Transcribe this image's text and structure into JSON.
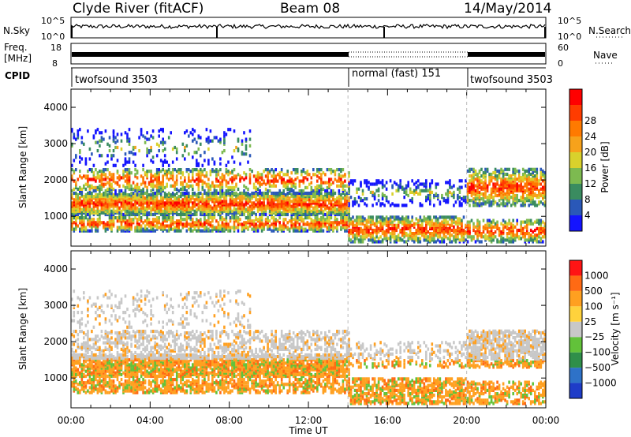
{
  "header": {
    "station": "Clyde River (fitACF)",
    "beam": "Beam 08",
    "date": "14/May/2014"
  },
  "noise_panel": {
    "left_label": "N.Sky",
    "right_label": "N.Search",
    "left_ticks": [
      "10^5",
      "10^0"
    ],
    "right_ticks": [
      "10^5",
      "10^0"
    ]
  },
  "freq_panel": {
    "left_label_1": "Freq.",
    "left_label_2": "[MHz]",
    "right_label": "Nave",
    "left_ticks": [
      "18",
      "8"
    ],
    "right_ticks": [
      "60",
      "0"
    ]
  },
  "cpid_panel": {
    "label": "CPID",
    "segments": [
      {
        "name": "twofsound 3503",
        "start": 0,
        "end": 14
      },
      {
        "name": "normal (fast) 151",
        "start": 14,
        "end": 20
      },
      {
        "name": "twofsound 3503",
        "start": 20,
        "end": 24
      }
    ]
  },
  "chart_data": [
    {
      "type": "heatmap",
      "panel": "power",
      "xlabel": "Time UT",
      "ylabel": "Slant Range [km]",
      "xlim": [
        0,
        24
      ],
      "ylim": [
        180,
        4500
      ],
      "x_ticks": [
        "00:00",
        "04:00",
        "08:00",
        "12:00",
        "16:00",
        "20:00",
        "00:00"
      ],
      "y_ticks": [
        1000,
        2000,
        3000,
        4000
      ],
      "colorbar_label": "Power [dB]",
      "colorbar_ticks": [
        4,
        8,
        12,
        16,
        20,
        24,
        28
      ],
      "colorbar_colors": [
        "#1414ff",
        "#2a58b8",
        "#3a8c60",
        "#7dba50",
        "#d9d12c",
        "#f7a21b",
        "#ff7a00",
        "#ff3c00",
        "#ff0000"
      ]
    },
    {
      "type": "heatmap",
      "panel": "velocity",
      "xlabel": "Time UT",
      "ylabel": "Slant Range [km]",
      "xlim": [
        0,
        24
      ],
      "ylim": [
        180,
        4500
      ],
      "x_ticks": [
        "00:00",
        "04:00",
        "08:00",
        "12:00",
        "16:00",
        "20:00",
        "00:00"
      ],
      "y_ticks": [
        1000,
        2000,
        3000,
        4000
      ],
      "colorbar_label": "Velocity [m s⁻¹]",
      "colorbar_ticks": [
        "1000",
        "500",
        "100",
        "25",
        "−25",
        "−100",
        "−500",
        "−1000"
      ],
      "colorbar_colors": [
        "#1e3cc8",
        "#2e72c8",
        "#2f8f4a",
        "#62c23a",
        "#c8c8c8",
        "#ffd23c",
        "#ffa020",
        "#ff6a14",
        "#ff1414"
      ]
    }
  ]
}
